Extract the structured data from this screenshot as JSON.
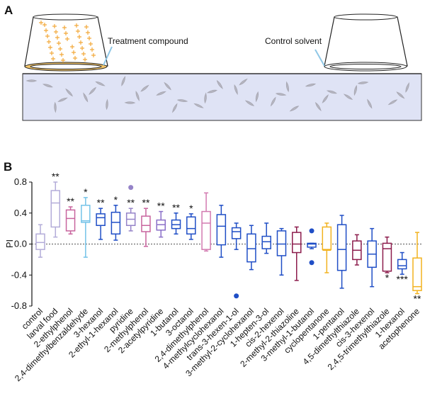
{
  "diagram": {
    "panel_label": "A",
    "treatment_label": "Treatment compound",
    "control_label": "Control solvent"
  },
  "chart_data": {
    "type": "box",
    "panel_label": "B",
    "ylabel": "PI",
    "categories": [
      "control",
      "larval food",
      "2-ethylphenol",
      "2,4-dimethylbenzaldehyde",
      "3-hexanol",
      "2-ethyl-1-hexanol",
      "pyridine",
      "2-methylphenol",
      "2-acetylpyridine",
      "1-butanol",
      "3-octanol",
      "2,4-dimethylphenol",
      "4-methylcyclohexanol",
      "trans-3-hexen-1-ol",
      "3-methyl-2-cyclohexanol",
      "1-hepten-3-ol",
      "cis-2-hexenol",
      "2-methyl-2-thiazoline",
      "3-methyl-1-butanol",
      "cyclopentanone",
      "1-pentanol",
      "4,5-dimethylthiazole",
      "cis-3-hexenol",
      "2,4,5-trimethylthiazole",
      "1-hexanol",
      "acetophenone"
    ],
    "colors": [
      "#b3acd9",
      "#b3acd9",
      "#c8649e",
      "#74c3e8",
      "#1f4ec6",
      "#1f4ec6",
      "#9583c8",
      "#c8649e",
      "#8a6fc8",
      "#1f4ec6",
      "#1f4ec6",
      "#d27ab0",
      "#1f4ec6",
      "#1f4ec6",
      "#1f4ec6",
      "#1f4ec6",
      "#1f4ec6",
      "#8c1c4c",
      "#1f4ec6",
      "#f2b21f",
      "#1f4ec6",
      "#8c1c4c",
      "#1f4ec6",
      "#8c1c4c",
      "#1f4ec6",
      "#f2b21f"
    ],
    "whisker_low": [
      -0.17,
      0.09,
      0.13,
      -0.17,
      0.06,
      0.05,
      0.17,
      -0.03,
      0.09,
      0.13,
      0.06,
      -0.09,
      -0.17,
      -0.07,
      -0.33,
      -0.12,
      -0.4,
      -0.47,
      -0.06,
      -0.37,
      -0.57,
      -0.27,
      -0.55,
      -0.37,
      -0.39,
      -0.64
    ],
    "q1": [
      -0.07,
      0.22,
      0.17,
      0.28,
      0.24,
      0.13,
      0.24,
      0.16,
      0.18,
      0.2,
      0.13,
      -0.07,
      -0.01,
      0.07,
      -0.23,
      -0.06,
      -0.15,
      -0.11,
      -0.04,
      -0.07,
      -0.34,
      -0.2,
      -0.3,
      -0.35,
      -0.32,
      -0.6
    ],
    "median": [
      0.02,
      0.53,
      0.33,
      0.3,
      0.34,
      0.28,
      0.32,
      0.24,
      0.25,
      0.25,
      0.2,
      0.27,
      0.23,
      0.16,
      -0.06,
      0.03,
      0,
      0,
      0,
      -0.08,
      -0.07,
      -0.08,
      -0.13,
      -0.06,
      -0.28,
      -0.55
    ],
    "q3": [
      0.13,
      0.69,
      0.44,
      0.5,
      0.39,
      0.41,
      0.4,
      0.36,
      0.31,
      0.31,
      0.35,
      0.42,
      0.38,
      0.21,
      0.13,
      0.1,
      0.17,
      0.15,
      0.01,
      0.22,
      0.25,
      0.04,
      0.04,
      0.01,
      -0.2,
      -0.18
    ],
    "whisker_high": [
      0.25,
      0.8,
      0.48,
      0.6,
      0.46,
      0.5,
      0.46,
      0.46,
      0.42,
      0.4,
      0.39,
      0.66,
      0.5,
      0.27,
      0.24,
      0.27,
      0.2,
      0.22,
      0.01,
      0.27,
      0.37,
      0.12,
      0.2,
      0.09,
      -0.11,
      0.15
    ],
    "outliers": [
      [],
      [],
      [],
      [],
      [],
      [],
      [
        0.73
      ],
      [],
      [],
      [],
      [],
      [],
      [],
      [
        -0.67
      ],
      [],
      [],
      [],
      [],
      [
        0.17,
        -0.24
      ],
      [],
      [],
      [],
      [],
      [],
      [],
      []
    ],
    "significance": [
      null,
      "**",
      "**",
      "*",
      "**",
      "*",
      "**",
      "**",
      "**",
      "**",
      "*",
      null,
      null,
      null,
      null,
      null,
      null,
      null,
      null,
      null,
      null,
      null,
      null,
      "*",
      "***",
      "**"
    ],
    "ylim": [
      -0.8,
      0.8
    ],
    "yticks": [
      -0.8,
      -0.4,
      {
        "value": 0,
        "label": "0.0"
      },
      0.4,
      0.8
    ]
  }
}
